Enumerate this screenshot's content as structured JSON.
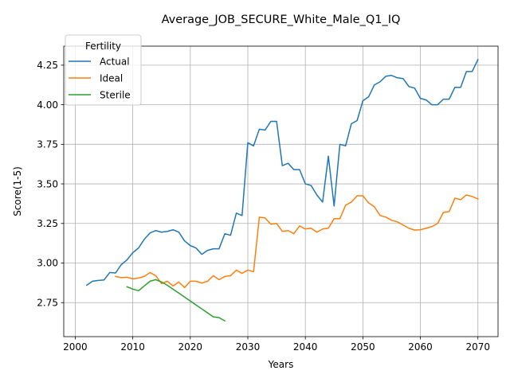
{
  "chart_data": {
    "type": "line",
    "title": "Average_JOB_SECURE_White_Male_Q1_IQ",
    "xlabel": "Years",
    "ylabel": "Score(1-5)",
    "xlim": [
      1998,
      2073.5
    ],
    "ylim": [
      2.535,
      4.37
    ],
    "xticks": [
      2000,
      2010,
      2020,
      2030,
      2040,
      2050,
      2060,
      2070
    ],
    "yticks": [
      2.75,
      3.0,
      3.25,
      3.5,
      3.75,
      4.0,
      4.25
    ],
    "ytick_labels": [
      "2.75",
      "3.00",
      "3.25",
      "3.50",
      "3.75",
      "4.00",
      "4.25"
    ],
    "grid": true,
    "legend": {
      "title": "Fertility",
      "placement": "top-left"
    },
    "series": [
      {
        "name": "Actual",
        "color": "#1f77b4",
        "x": [
          2002,
          2003,
          2004,
          2005,
          2006,
          2007,
          2008,
          2009,
          2010,
          2011,
          2012,
          2013,
          2014,
          2015,
          2016,
          2017,
          2018,
          2019,
          2020,
          2021,
          2022,
          2023,
          2024,
          2025,
          2026,
          2027,
          2028,
          2029,
          2030,
          2031,
          2032,
          2033,
          2034,
          2035,
          2036,
          2037,
          2038,
          2039,
          2040,
          2041,
          2042,
          2043,
          2044,
          2045,
          2046,
          2047,
          2048,
          2049,
          2050,
          2051,
          2052,
          2053,
          2054,
          2055,
          2056,
          2057,
          2058,
          2059,
          2060,
          2061,
          2062,
          2063,
          2064,
          2065,
          2066,
          2067,
          2068,
          2069,
          2070
        ],
        "y": [
          2.86,
          2.885,
          2.89,
          2.893,
          2.94,
          2.937,
          2.99,
          3.02,
          3.065,
          3.095,
          3.15,
          3.19,
          3.205,
          3.195,
          3.2,
          3.21,
          3.195,
          3.14,
          3.11,
          3.095,
          3.055,
          3.08,
          3.09,
          3.09,
          3.185,
          3.175,
          3.315,
          3.3,
          3.76,
          3.74,
          3.845,
          3.84,
          3.895,
          3.895,
          3.615,
          3.63,
          3.59,
          3.59,
          3.5,
          3.49,
          3.43,
          3.385,
          3.675,
          3.36,
          3.75,
          3.74,
          3.88,
          3.9,
          4.025,
          4.05,
          4.125,
          4.145,
          4.18,
          4.185,
          4.17,
          4.165,
          4.115,
          4.105,
          4.04,
          4.03,
          4.0,
          4.0,
          4.035,
          4.035,
          4.11,
          4.11,
          4.21,
          4.21,
          4.285
        ]
      },
      {
        "name": "Ideal",
        "color": "#ff7f0e",
        "x": [
          2007,
          2008,
          2009,
          2010,
          2011,
          2012,
          2013,
          2014,
          2015,
          2016,
          2017,
          2018,
          2019,
          2020,
          2021,
          2022,
          2023,
          2024,
          2025,
          2026,
          2027,
          2028,
          2029,
          2030,
          2031,
          2032,
          2033,
          2034,
          2035,
          2036,
          2037,
          2038,
          2039,
          2040,
          2041,
          2042,
          2043,
          2044,
          2045,
          2046,
          2047,
          2048,
          2049,
          2050,
          2051,
          2052,
          2053,
          2054,
          2055,
          2056,
          2057,
          2058,
          2059,
          2060,
          2061,
          2062,
          2063,
          2064,
          2065,
          2066,
          2067,
          2068,
          2069,
          2070
        ],
        "y": [
          2.915,
          2.908,
          2.91,
          2.9,
          2.905,
          2.915,
          2.94,
          2.92,
          2.87,
          2.885,
          2.855,
          2.88,
          2.845,
          2.885,
          2.885,
          2.873,
          2.885,
          2.92,
          2.895,
          2.915,
          2.92,
          2.955,
          2.935,
          2.955,
          2.945,
          3.29,
          3.285,
          3.245,
          3.25,
          3.2,
          3.205,
          3.185,
          3.235,
          3.215,
          3.22,
          3.195,
          3.215,
          3.22,
          3.28,
          3.28,
          3.365,
          3.385,
          3.425,
          3.425,
          3.38,
          3.355,
          3.3,
          3.29,
          3.27,
          3.26,
          3.24,
          3.22,
          3.208,
          3.21,
          3.22,
          3.23,
          3.25,
          3.32,
          3.325,
          3.41,
          3.4,
          3.43,
          3.42,
          3.405
        ]
      },
      {
        "name": "Sterile",
        "color": "#2ca02c",
        "x": [
          2009,
          2010,
          2011,
          2012,
          2013,
          2014,
          2015,
          2016,
          2017,
          2018,
          2019,
          2020,
          2021,
          2022,
          2023,
          2024,
          2025,
          2026
        ],
        "y": [
          2.85,
          2.835,
          2.825,
          2.855,
          2.885,
          2.895,
          2.88,
          2.86,
          2.835,
          2.81,
          2.785,
          2.76,
          2.735,
          2.71,
          2.685,
          2.66,
          2.655,
          2.635
        ]
      }
    ]
  }
}
